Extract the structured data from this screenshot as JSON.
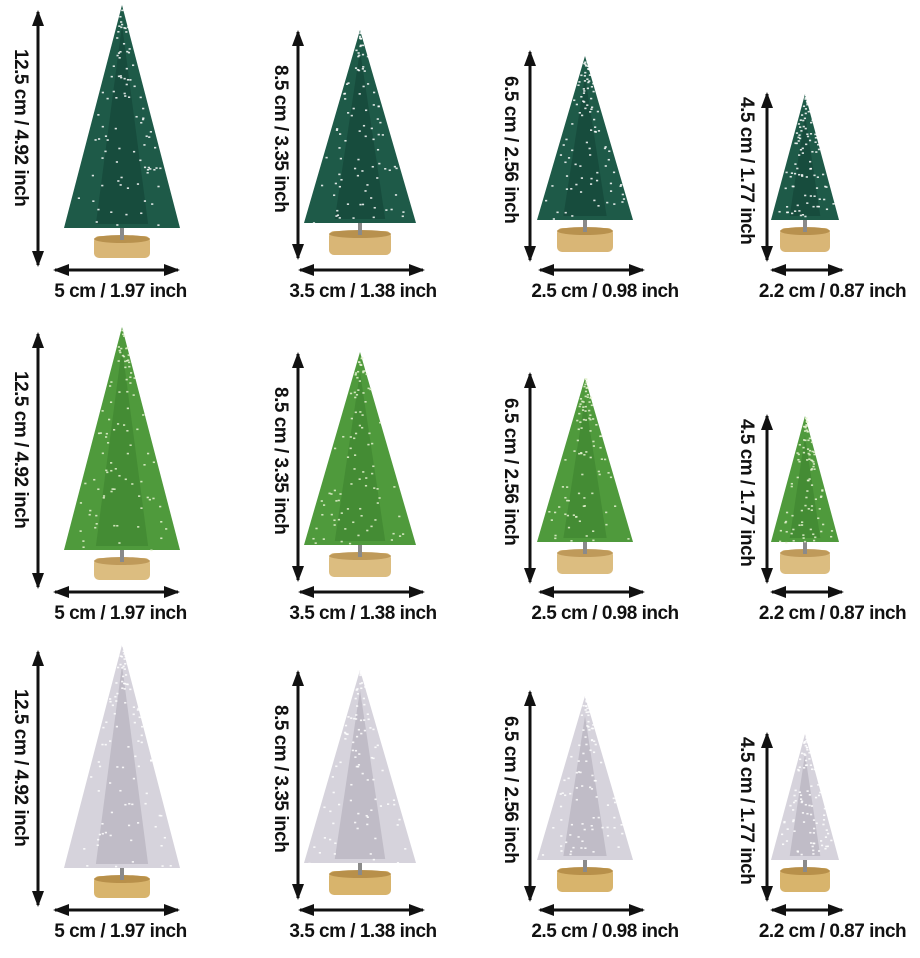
{
  "rows": [
    {
      "variant": "dark-green-snow",
      "colors": {
        "foliage": "#1e5a48",
        "foliage_dark": "#0f3d31",
        "snow": "#ffffff",
        "base": "#d9b676",
        "base_dark": "#b8914e"
      },
      "items": [
        {
          "height_label": "12.5 cm / 4.92 inch",
          "width_label": "5 cm / 1.97 inch"
        },
        {
          "height_label": "8.5 cm / 3.35 inch",
          "width_label": "3.5 cm / 1.38 inch"
        },
        {
          "height_label": "6.5 cm / 2.56 inch",
          "width_label": "2.5 cm / 0.98 inch"
        },
        {
          "height_label": "4.5 cm / 1.77 inch",
          "width_label": "2.2 cm / 0.87 inch"
        }
      ]
    },
    {
      "variant": "light-green",
      "colors": {
        "foliage": "#4f9a3c",
        "foliage_dark": "#3a7d2c",
        "snow": "#e8f3d2",
        "base": "#dcbd80",
        "base_dark": "#bf9a5a"
      },
      "items": [
        {
          "height_label": "12.5 cm / 4.92 inch",
          "width_label": "5 cm / 1.97 inch"
        },
        {
          "height_label": "8.5 cm / 3.35 inch",
          "width_label": "3.5 cm / 1.38 inch"
        },
        {
          "height_label": "6.5 cm / 2.56 inch",
          "width_label": "2.5 cm / 0.98 inch"
        },
        {
          "height_label": "4.5 cm / 1.77 inch",
          "width_label": "2.2 cm / 0.87 inch"
        }
      ]
    },
    {
      "variant": "silver",
      "colors": {
        "foliage": "#d6d3dc",
        "foliage_dark": "#a9a5b2",
        "snow": "#ffffff",
        "base": "#d8b46c",
        "base_dark": "#b8904a"
      },
      "items": [
        {
          "height_label": "12.5 cm / 4.92 inch",
          "width_label": "5 cm / 1.97 inch"
        },
        {
          "height_label": "8.5 cm / 3.35 inch",
          "width_label": "3.5 cm / 1.38 inch"
        },
        {
          "height_label": "6.5 cm / 2.56 inch",
          "width_label": "2.5 cm / 0.98 inch"
        },
        {
          "height_label": "4.5 cm / 1.77 inch",
          "width_label": "2.2 cm / 0.87 inch"
        }
      ]
    }
  ]
}
